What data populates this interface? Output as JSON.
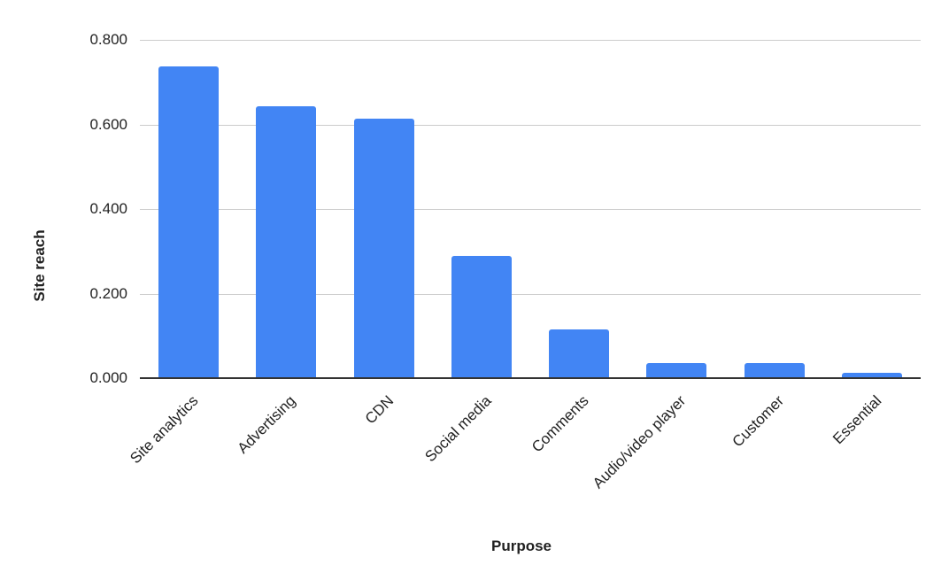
{
  "chart_data": {
    "type": "bar",
    "title": "",
    "xlabel": "Purpose",
    "ylabel": "Site reach",
    "categories": [
      "Site analytics",
      "Advertising",
      "CDN",
      "Social media",
      "Comments",
      "Audio/video player",
      "Customer",
      "Essential"
    ],
    "values": [
      0.737,
      0.643,
      0.614,
      0.289,
      0.115,
      0.036,
      0.036,
      0.013
    ],
    "ylim": [
      0,
      0.8
    ],
    "yticks": [
      "0.000",
      "0.200",
      "0.400",
      "0.600",
      "0.800"
    ],
    "grid": true,
    "legend": null,
    "bar_color": "#4285f4"
  }
}
